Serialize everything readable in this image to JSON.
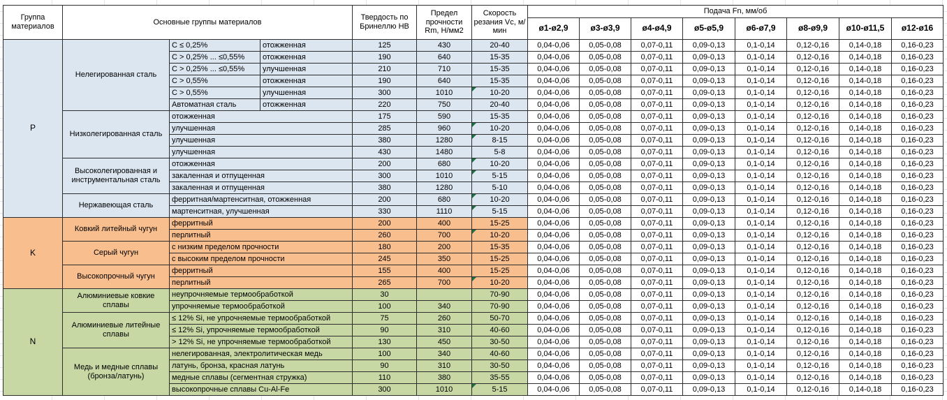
{
  "header": {
    "col_group": "Группа материалов",
    "col_main_groups": "Основные группы материалов",
    "col_hardness": "Твердость по Бринеллю HB",
    "col_strength": "Предел прочности Rm, Н/мм2",
    "col_speed": "Скорость резания Vc, м/мин",
    "feed_title": "Подача Fn, мм/об",
    "feed_cols": [
      "ø1-ø2,9",
      "ø3-ø3,9",
      "ø4-ø4,9",
      "ø5-ø5,9",
      "ø6-ø7,9",
      "ø8-ø9,9",
      "ø10-ø11,5",
      "ø12-ø16"
    ]
  },
  "feed_values": [
    "0,04-0,06",
    "0,05-0,08",
    "0,07-0,11",
    "0,09-0,13",
    "0,1-0,14",
    "0,12-0,16",
    "0,14-0,18",
    "0,16-0,23"
  ],
  "colors": {
    "section_p": "#DCE6F1",
    "section_k": "#F9BE8E",
    "section_n": "#C7D8A4",
    "marker": "#1E7145"
  },
  "sections": [
    {
      "group": "P",
      "color": "#DCE6F1",
      "subgroups": [
        {
          "name": "Нелегированная сталь",
          "rows": [
            {
              "desc": "C ≤ 0,25%",
              "state": "отожженная",
              "hb": "125",
              "rm": "430",
              "vc": "20-40",
              "note": false
            },
            {
              "desc": "C > 0,25% ... ≤0,55%",
              "state": "отожженная",
              "hb": "190",
              "rm": "640",
              "vc": "15-35",
              "note": false
            },
            {
              "desc": "C > 0,25% ... ≤0,55%",
              "state": "улучшенная",
              "hb": "210",
              "rm": "710",
              "vc": "15-35",
              "note": false
            },
            {
              "desc": "C > 0,55%",
              "state": "отожженная",
              "hb": "190",
              "rm": "640",
              "vc": "15-35",
              "note": false
            },
            {
              "desc": "C > 0,55%",
              "state": "улучшенная",
              "hb": "300",
              "rm": "1010",
              "vc": "10-20",
              "note": true
            },
            {
              "desc": "Автоматная сталь",
              "state": "отожженная",
              "hb": "220",
              "rm": "750",
              "vc": "20-40",
              "note": false
            }
          ]
        },
        {
          "name": "Низколегированная сталь",
          "rows": [
            {
              "desc": "отожженная",
              "state": null,
              "hb": "175",
              "rm": "590",
              "vc": "15-35",
              "note": false
            },
            {
              "desc": "улучшенная",
              "state": null,
              "hb": "285",
              "rm": "960",
              "vc": "10-20",
              "note": true
            },
            {
              "desc": "улучшенная",
              "state": null,
              "hb": "380",
              "rm": "1280",
              "vc": "8-15",
              "note": true
            },
            {
              "desc": "улучшенная",
              "state": null,
              "hb": "430",
              "rm": "1480",
              "vc": "5-8",
              "note": false
            }
          ]
        },
        {
          "name": "Высоколегированная и инструментальная сталь",
          "rows": [
            {
              "desc": "отожженная",
              "state": null,
              "hb": "200",
              "rm": "680",
              "vc": "10-20",
              "note": true
            },
            {
              "desc": "закаленная и отпущенная",
              "state": null,
              "hb": "300",
              "rm": "1010",
              "vc": "5-15",
              "note": true
            },
            {
              "desc": "закаленная и отпущенная",
              "state": null,
              "hb": "380",
              "rm": "1280",
              "vc": "5-10",
              "note": false
            }
          ]
        },
        {
          "name": "Нержавеющая сталь",
          "rows": [
            {
              "desc": "ферритная/мартенситная, отожженная",
              "state": null,
              "hb": "200",
              "rm": "680",
              "vc": "10-20",
              "note": true
            },
            {
              "desc": "мартенситная, улучшенная",
              "state": null,
              "hb": "330",
              "rm": "1110",
              "vc": "5-15",
              "note": true
            }
          ]
        }
      ]
    },
    {
      "group": "K",
      "color": "#F9BE8E",
      "subgroups": [
        {
          "name": "Ковкий литейный чугун",
          "rows": [
            {
              "desc": "ферритный",
              "state": null,
              "hb": "200",
              "rm": "400",
              "vc": "15-25",
              "note": false
            },
            {
              "desc": "перлитный",
              "state": null,
              "hb": "260",
              "rm": "700",
              "vc": "10-20",
              "note": true
            }
          ]
        },
        {
          "name": "Серый чугун",
          "rows": [
            {
              "desc": "с низким пределом прочности",
              "state": null,
              "hb": "180",
              "rm": "200",
              "vc": "15-35",
              "note": false
            },
            {
              "desc": "с высоким пределом прочности",
              "state": null,
              "hb": "245",
              "rm": "350",
              "vc": "15-25",
              "note": false
            }
          ]
        },
        {
          "name": "Высокопрочный чугун",
          "rows": [
            {
              "desc": "ферритный",
              "state": null,
              "hb": "155",
              "rm": "400",
              "vc": "15-25",
              "note": false
            },
            {
              "desc": "перлитный",
              "state": null,
              "hb": "265",
              "rm": "700",
              "vc": "10-20",
              "note": true
            }
          ]
        }
      ]
    },
    {
      "group": "N",
      "color": "#C7D8A4",
      "subgroups": [
        {
          "name": "Алюминиевые ковкие сплавы",
          "rows": [
            {
              "desc": "неупрочняемые термообработкой",
              "state": null,
              "hb": "30",
              "rm": "",
              "vc": "70-90",
              "note": false
            },
            {
              "desc": "упрочняемые термообработкой",
              "state": null,
              "hb": "100",
              "rm": "340",
              "vc": "70-90",
              "note": false
            }
          ]
        },
        {
          "name": "Алюминиевые литейные сплавы",
          "rows": [
            {
              "desc": "≤ 12% Si, не упрочняемые термообработкой",
              "state": null,
              "hb": "75",
              "rm": "260",
              "vc": "50-70",
              "note": false
            },
            {
              "desc": "≤ 12% Si, упрочняемые термообработкой",
              "state": null,
              "hb": "90",
              "rm": "310",
              "vc": "40-60",
              "note": false
            },
            {
              "desc": "> 12% Si, не упрочняемые термообработкой",
              "state": null,
              "hb": "130",
              "rm": "450",
              "vc": "30-50",
              "note": false
            }
          ]
        },
        {
          "name": "Медь и медные сплавы (бронза/латунь)",
          "rows": [
            {
              "desc": "нелегированная, электролитическая медь",
              "state": null,
              "hb": "100",
              "rm": "340",
              "vc": "40-60",
              "note": false
            },
            {
              "desc": "латунь, бронза, красная латунь",
              "state": null,
              "hb": "90",
              "rm": "310",
              "vc": "30-50",
              "note": false
            },
            {
              "desc": "медные сплавы (сегментная стружка)",
              "state": null,
              "hb": "110",
              "rm": "380",
              "vc": "35-55",
              "note": false
            },
            {
              "desc": "высокопрочные сплавы Cu-Al-Fe",
              "state": null,
              "hb": "300",
              "rm": "1010",
              "vc": "5-15",
              "note": true
            }
          ]
        }
      ]
    }
  ]
}
